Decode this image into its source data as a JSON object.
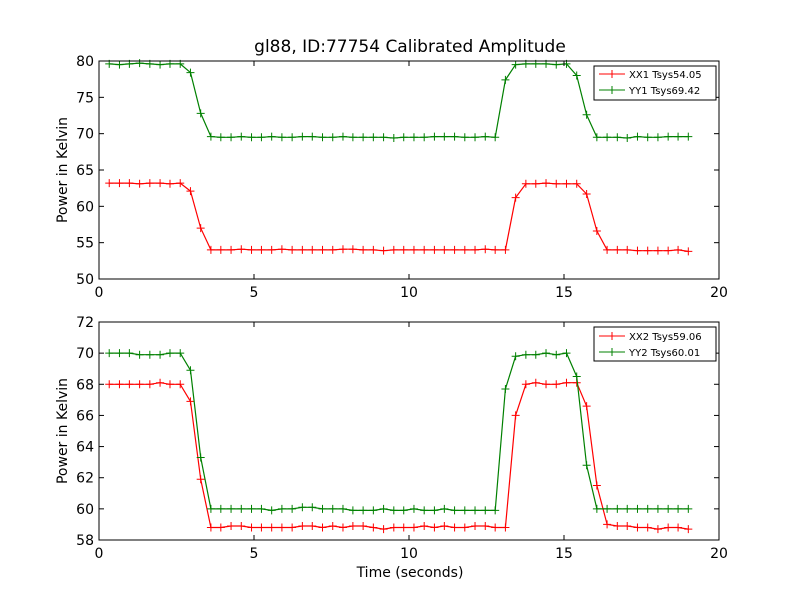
{
  "title": "gl88, ID:77754 Calibrated Amplitude",
  "xlabel": "Time (seconds)",
  "colors": {
    "red_series": "#ff0000",
    "green_series": "#008000"
  },
  "chart_data": [
    {
      "type": "line",
      "ylabel": "Power in Kelvin",
      "xlim": [
        0,
        20
      ],
      "ylim": [
        50,
        80
      ],
      "xticks": [
        "0",
        "5",
        "10",
        "15",
        "20"
      ],
      "yticks": [
        "50",
        "55",
        "60",
        "65",
        "70",
        "75",
        "80"
      ],
      "grid": false,
      "legend_position": "top-right",
      "x": [
        0.33,
        0.66,
        0.98,
        1.31,
        1.64,
        1.97,
        2.29,
        2.62,
        2.95,
        3.28,
        3.61,
        3.93,
        4.26,
        4.59,
        4.92,
        5.24,
        5.57,
        5.9,
        6.23,
        6.56,
        6.88,
        7.21,
        7.54,
        7.87,
        8.19,
        8.52,
        8.85,
        9.18,
        9.51,
        9.83,
        10.16,
        10.49,
        10.82,
        11.14,
        11.47,
        11.8,
        12.13,
        12.46,
        12.78,
        13.11,
        13.44,
        13.77,
        14.09,
        14.42,
        14.75,
        15.08,
        15.41,
        15.73,
        16.06,
        16.39,
        16.72,
        17.04,
        17.37,
        17.7,
        18.03,
        18.36,
        18.68,
        19.01
      ],
      "series": [
        {
          "name": "XX1 Tsys54.05",
          "color": "#ff0000",
          "values": [
            63.2,
            63.2,
            63.2,
            63.1,
            63.2,
            63.2,
            63.1,
            63.2,
            62.1,
            57.0,
            54.0,
            54.0,
            54.0,
            54.1,
            54.0,
            54.0,
            54.0,
            54.1,
            54.0,
            54.0,
            54.0,
            54.0,
            54.0,
            54.1,
            54.1,
            54.0,
            54.0,
            53.9,
            54.0,
            54.0,
            54.0,
            54.0,
            54.0,
            54.0,
            54.0,
            54.0,
            54.0,
            54.1,
            54.0,
            54.0,
            61.2,
            63.1,
            63.1,
            63.2,
            63.1,
            63.1,
            63.1,
            61.7,
            56.6,
            54.0,
            54.0,
            54.0,
            53.9,
            53.9,
            53.9,
            53.9,
            54.0,
            53.8
          ]
        },
        {
          "name": "YY1 Tsys69.42",
          "color": "#008000",
          "values": [
            79.6,
            79.5,
            79.6,
            79.7,
            79.6,
            79.5,
            79.6,
            79.6,
            78.4,
            72.8,
            69.6,
            69.5,
            69.5,
            69.6,
            69.5,
            69.5,
            69.6,
            69.5,
            69.5,
            69.6,
            69.6,
            69.5,
            69.5,
            69.6,
            69.5,
            69.5,
            69.5,
            69.5,
            69.4,
            69.5,
            69.5,
            69.5,
            69.6,
            69.6,
            69.6,
            69.5,
            69.5,
            69.6,
            69.5,
            77.4,
            79.5,
            79.6,
            79.6,
            79.6,
            79.5,
            79.6,
            78.0,
            72.6,
            69.5,
            69.5,
            69.5,
            69.4,
            69.6,
            69.5,
            69.5,
            69.6,
            69.6,
            69.6
          ]
        }
      ]
    },
    {
      "type": "line",
      "ylabel": "Power in Kelvin",
      "xlabel": "Time (seconds)",
      "xlim": [
        0,
        20
      ],
      "ylim": [
        58,
        72
      ],
      "xticks": [
        "0",
        "5",
        "10",
        "15",
        "20"
      ],
      "yticks": [
        "58",
        "60",
        "62",
        "64",
        "66",
        "68",
        "70",
        "72"
      ],
      "grid": false,
      "legend_position": "top-right",
      "x": [
        0.33,
        0.66,
        0.98,
        1.31,
        1.64,
        1.97,
        2.29,
        2.62,
        2.95,
        3.28,
        3.61,
        3.93,
        4.26,
        4.59,
        4.92,
        5.24,
        5.57,
        5.9,
        6.23,
        6.56,
        6.88,
        7.21,
        7.54,
        7.87,
        8.19,
        8.52,
        8.85,
        9.18,
        9.51,
        9.83,
        10.16,
        10.49,
        10.82,
        11.14,
        11.47,
        11.8,
        12.13,
        12.46,
        12.78,
        13.11,
        13.44,
        13.77,
        14.09,
        14.42,
        14.75,
        15.08,
        15.41,
        15.73,
        16.06,
        16.39,
        16.72,
        17.04,
        17.37,
        17.7,
        18.03,
        18.36,
        18.68,
        19.01
      ],
      "series": [
        {
          "name": "XX2 Tsys59.06",
          "color": "#ff0000",
          "values": [
            68.0,
            68.0,
            68.0,
            68.0,
            68.0,
            68.1,
            68.0,
            68.0,
            66.9,
            61.9,
            58.8,
            58.8,
            58.9,
            58.9,
            58.8,
            58.8,
            58.8,
            58.8,
            58.8,
            58.9,
            58.9,
            58.8,
            58.9,
            58.8,
            58.9,
            58.9,
            58.8,
            58.7,
            58.8,
            58.8,
            58.8,
            58.9,
            58.8,
            58.9,
            58.8,
            58.8,
            58.9,
            58.9,
            58.8,
            58.8,
            66.0,
            68.0,
            68.1,
            68.0,
            68.0,
            68.1,
            68.1,
            66.6,
            61.5,
            59.0,
            58.9,
            58.9,
            58.8,
            58.8,
            58.7,
            58.8,
            58.8,
            58.7
          ]
        },
        {
          "name": "YY2 Tsys60.01",
          "color": "#008000",
          "values": [
            70.0,
            70.0,
            70.0,
            69.9,
            69.9,
            69.9,
            70.0,
            70.0,
            68.9,
            63.3,
            60.0,
            60.0,
            60.0,
            60.0,
            60.0,
            60.0,
            59.9,
            60.0,
            60.0,
            60.1,
            60.1,
            60.0,
            60.0,
            60.0,
            59.9,
            59.9,
            59.9,
            60.0,
            59.9,
            59.9,
            60.0,
            59.9,
            59.9,
            60.0,
            59.9,
            59.9,
            59.9,
            59.9,
            59.9,
            67.7,
            69.8,
            69.9,
            69.9,
            70.0,
            69.9,
            70.0,
            68.5,
            62.8,
            60.0,
            60.0,
            60.0,
            60.0,
            60.0,
            60.0,
            60.0,
            60.0,
            60.0,
            60.0
          ]
        }
      ]
    }
  ]
}
